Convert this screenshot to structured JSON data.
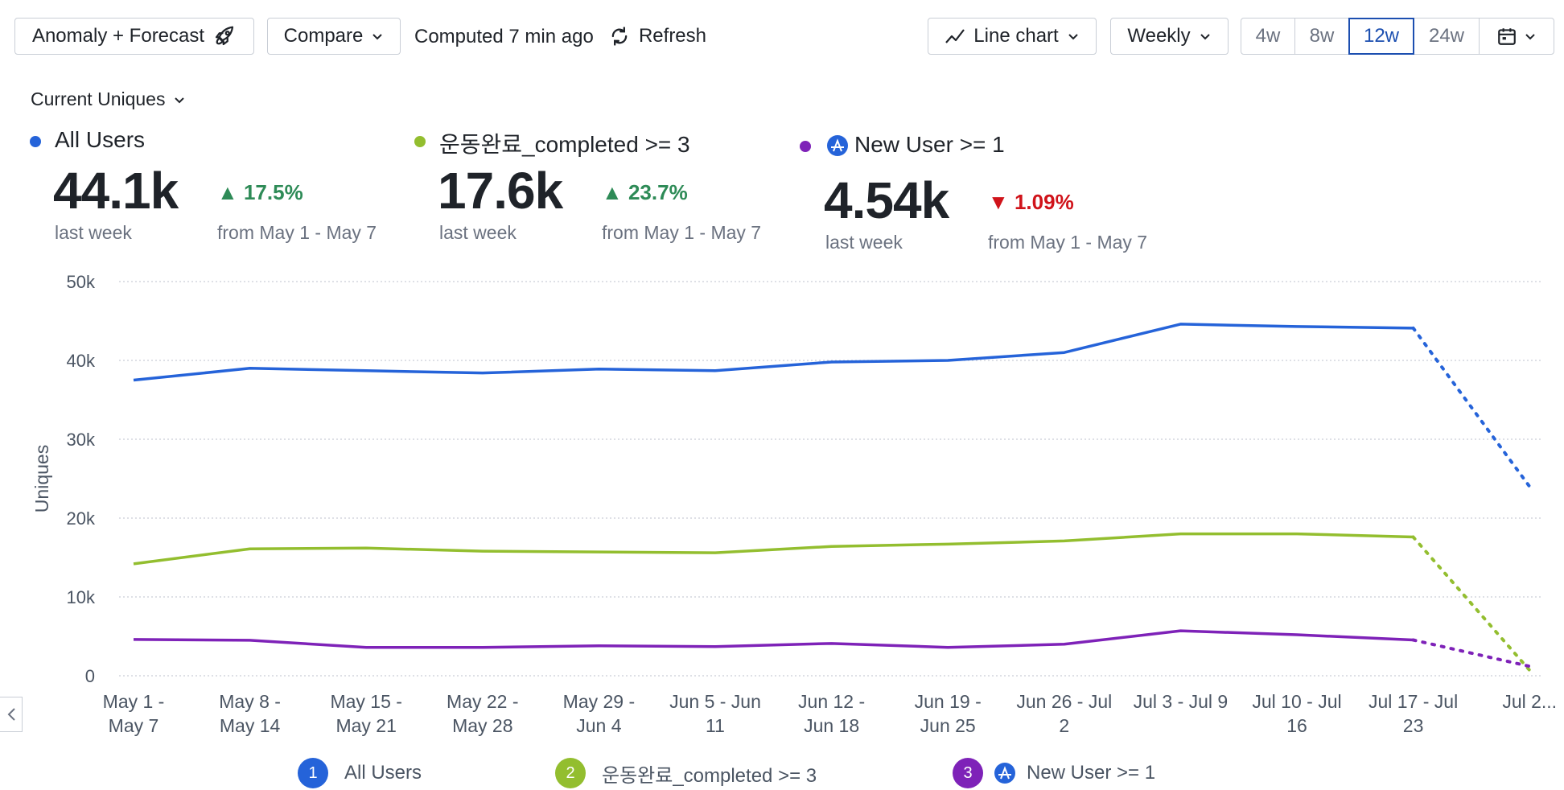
{
  "toolbar": {
    "anomaly_label": "Anomaly + Forecast",
    "compare_label": "Compare",
    "computed_text": "Computed 7 min ago",
    "refresh_label": "Refresh",
    "chart_type_label": "Line chart",
    "interval_label": "Weekly",
    "ranges": [
      "4w",
      "8w",
      "12w",
      "24w"
    ],
    "active_range": "12w"
  },
  "measure_selector": "Current Uniques",
  "metrics": [
    {
      "name": "All Users",
      "value": "44.1k",
      "period": "last week",
      "delta": "17.5%",
      "delta_dir": "up",
      "from": "from May 1 - May 7",
      "color": "#2563d9"
    },
    {
      "name": "운동완료_completed >= 3",
      "value": "17.6k",
      "period": "last week",
      "delta": "23.7%",
      "delta_dir": "up",
      "from": "from May 1 - May 7",
      "color": "#93be2f"
    },
    {
      "name": "New User >= 1",
      "value": "4.54k",
      "period": "last week",
      "delta": "1.09%",
      "delta_dir": "down",
      "from": "from May 1 - May 7",
      "color": "#7e22b8"
    }
  ],
  "chart_data": {
    "type": "line",
    "ylabel": "Uniques",
    "xlabel": "",
    "ylim": [
      0,
      50000
    ],
    "yticks": [
      0,
      10000,
      20000,
      30000,
      40000,
      50000
    ],
    "ytick_labels": [
      "0",
      "10k",
      "20k",
      "30k",
      "40k",
      "50k"
    ],
    "grid": true,
    "categories": [
      [
        "May 1 -",
        "May 7"
      ],
      [
        "May 8 -",
        "May 14"
      ],
      [
        "May 15 -",
        "May 21"
      ],
      [
        "May 22 -",
        "May 28"
      ],
      [
        "May 29 -",
        "Jun 4"
      ],
      [
        "Jun 5 - Jun",
        "11"
      ],
      [
        "Jun 12 -",
        "Jun 18"
      ],
      [
        "Jun 19 -",
        "Jun 25"
      ],
      [
        "Jun 26 - Jul",
        "2"
      ],
      [
        "Jul 3 - Jul 9",
        ""
      ],
      [
        "Jul 10 - Jul",
        "16"
      ],
      [
        "Jul 17 - Jul",
        "23"
      ],
      [
        "Jul 2...",
        ""
      ]
    ],
    "series": [
      {
        "name": "All Users",
        "color": "#2563d9",
        "values": [
          37500,
          39000,
          38700,
          38400,
          38900,
          38700,
          39800,
          40000,
          41000,
          44600,
          44300,
          44100,
          24000
        ],
        "forecast_from_index": 11
      },
      {
        "name": "운동완료_completed >= 3",
        "color": "#93be2f",
        "values": [
          14200,
          16100,
          16200,
          15800,
          15700,
          15600,
          16400,
          16700,
          17100,
          18000,
          18000,
          17600,
          700
        ],
        "forecast_from_index": 11
      },
      {
        "name": "New User >= 1",
        "color": "#7e22b8",
        "values": [
          4600,
          4500,
          3600,
          3600,
          3800,
          3700,
          4100,
          3600,
          4000,
          5700,
          5200,
          4540,
          1200
        ],
        "forecast_from_index": 11
      }
    ]
  },
  "legend": [
    {
      "num": "1",
      "label": "All Users",
      "color": "#2563d9"
    },
    {
      "num": "2",
      "label": "운동완료_completed >= 3",
      "color": "#93be2f"
    },
    {
      "num": "3",
      "label": "New User >= 1",
      "color": "#7e22b8"
    }
  ]
}
